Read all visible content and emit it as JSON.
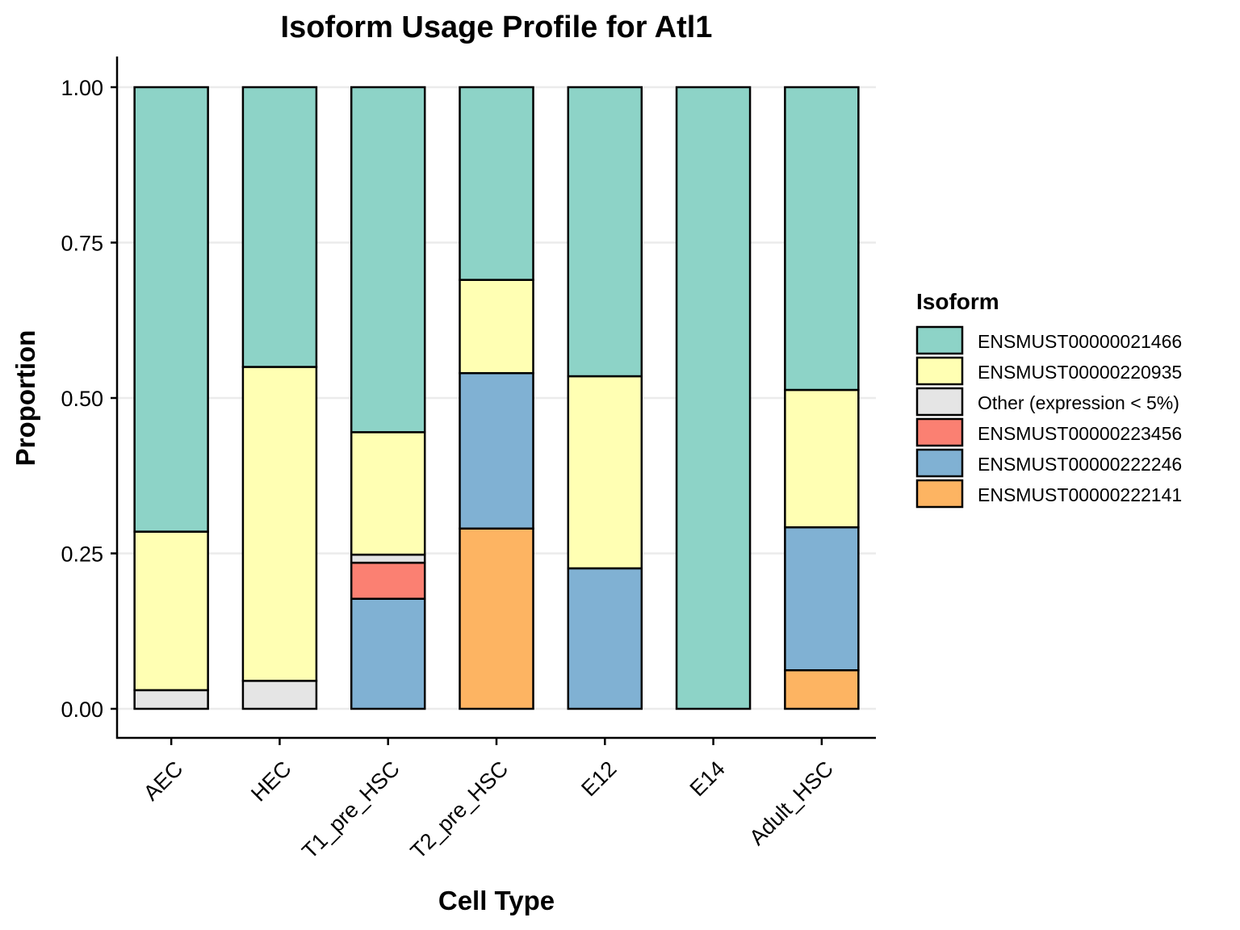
{
  "chart_data": {
    "type": "bar",
    "stacked": true,
    "title": "Isoform Usage Profile for Atl1",
    "xlabel": "Cell Type",
    "ylabel": "Proportion",
    "ylim": [
      0,
      1.05
    ],
    "yticks": [
      "0.00",
      "0.25",
      "0.50",
      "0.75",
      "1.00"
    ],
    "grid": "horizontal",
    "legend_position": "right",
    "categories": [
      "AEC",
      "HEC",
      "T1_pre_HSC",
      "T2_pre_HSC",
      "E12",
      "E14",
      "Adult_HSC"
    ],
    "legend": {
      "title": "Isoform",
      "entries": [
        "ENSMUST00000021466",
        "ENSMUST00000220935",
        "Other (expression < 5%)",
        "ENSMUST00000223456",
        "ENSMUST00000222246",
        "ENSMUST00000222141"
      ]
    },
    "stack_order_bottom_to_top": [
      "ENSMUST00000222141",
      "ENSMUST00000222246",
      "ENSMUST00000223456",
      "Other (expression < 5%)",
      "ENSMUST00000220935",
      "ENSMUST00000021466"
    ],
    "series": [
      {
        "name": "ENSMUST00000021466",
        "color": "#8DD3C7",
        "values": [
          0.715,
          0.45,
          0.555,
          0.31,
          0.465,
          1.0,
          0.487
        ]
      },
      {
        "name": "ENSMUST00000220935",
        "color": "#FFFFB3",
        "values": [
          0.255,
          0.505,
          0.197,
          0.15,
          0.309,
          0.0,
          0.221
        ]
      },
      {
        "name": "Other (expression < 5%)",
        "color": "#E5E5E5",
        "values": [
          0.03,
          0.045,
          0.013,
          0.0,
          0.0,
          0.0,
          0.0
        ]
      },
      {
        "name": "ENSMUST00000223456",
        "color": "#FB8072",
        "values": [
          0.0,
          0.0,
          0.058,
          0.0,
          0.0,
          0.0,
          0.0
        ]
      },
      {
        "name": "ENSMUST00000222246",
        "color": "#80B1D3",
        "values": [
          0.0,
          0.0,
          0.177,
          0.25,
          0.226,
          0.0,
          0.23
        ]
      },
      {
        "name": "ENSMUST00000222141",
        "color": "#FDB462",
        "values": [
          0.0,
          0.0,
          0.0,
          0.29,
          0.0,
          0.0,
          0.062
        ]
      }
    ]
  }
}
